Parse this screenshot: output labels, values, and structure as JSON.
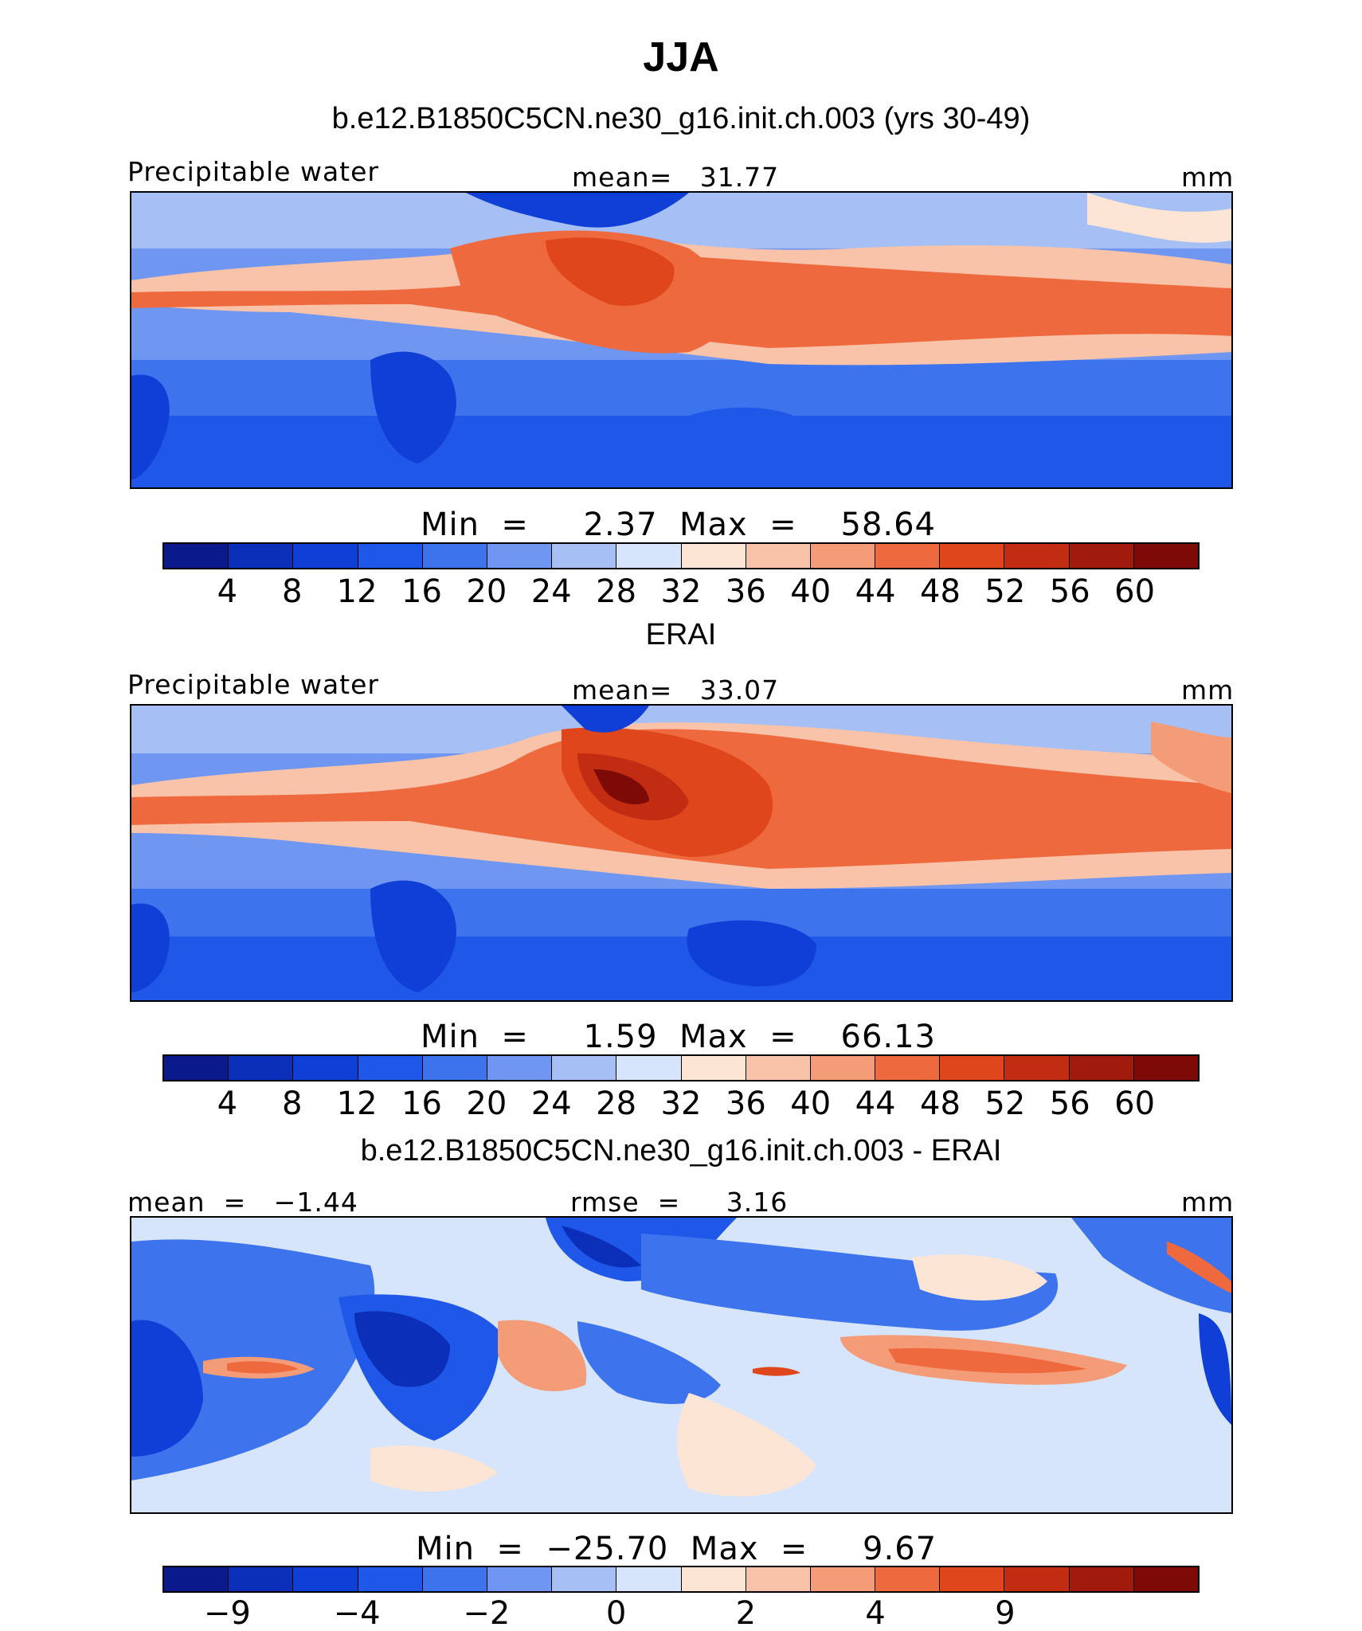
{
  "figure": {
    "title": "JJA"
  },
  "panels": [
    {
      "subtitle": "b.e12.B1850C5CN.ne30_g16.init.ch.003 (yrs 30-49)",
      "left_label": "Precipitable water",
      "center_label": "mean=   31.77",
      "right_label": "mm",
      "minmax": "Min  =     2.37  Max  =    58.64",
      "colorbar_ticks": [
        "4",
        "8",
        "12",
        "16",
        "20",
        "24",
        "28",
        "32",
        "36",
        "40",
        "44",
        "48",
        "52",
        "56",
        "60"
      ],
      "palette": "abs"
    },
    {
      "subtitle": "ERAI",
      "left_label": "Precipitable water",
      "center_label": "mean=   33.07",
      "right_label": "mm",
      "minmax": "Min  =     1.59  Max  =    66.13",
      "colorbar_ticks": [
        "4",
        "8",
        "12",
        "16",
        "20",
        "24",
        "28",
        "32",
        "36",
        "40",
        "44",
        "48",
        "52",
        "56",
        "60"
      ],
      "palette": "abs"
    },
    {
      "subtitle": "b.e12.B1850C5CN.ne30_g16.init.ch.003 - ERAI",
      "left_label": "mean  =   −1.44",
      "center_label": "rmse  =     3.16",
      "right_label": "mm",
      "minmax": "Min  =  −25.70  Max  =     9.67",
      "colorbar_ticks": [
        "−9",
        "−4",
        "−2",
        "0",
        "2",
        "4",
        "9"
      ],
      "palette": "diff"
    }
  ],
  "colors": {
    "abs_scale": [
      "#0a1a8c",
      "#0b2fb8",
      "#0f3fd6",
      "#1f58e8",
      "#3d74ee",
      "#6f96f1",
      "#a6bff5",
      "#d6e5fb",
      "#fde5d6",
      "#f9c3aa",
      "#f49c78",
      "#ee6a3e",
      "#e0461b",
      "#c12c12",
      "#a01a0d",
      "#7e0a08"
    ],
    "diff_scale": [
      "#0a1a8c",
      "#0b2fb8",
      "#0f3fd6",
      "#1f58e8",
      "#3d74ee",
      "#6f96f1",
      "#a6bff5",
      "#d6e5fb",
      "#fde5d6",
      "#f9c3aa",
      "#f49c78",
      "#ee6a3e",
      "#e0461b",
      "#c12c12",
      "#a01a0d",
      "#7e0a08"
    ]
  }
}
